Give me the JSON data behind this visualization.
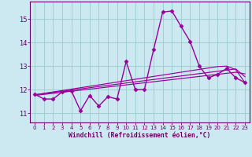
{
  "x": [
    0,
    1,
    2,
    3,
    4,
    5,
    6,
    7,
    8,
    9,
    10,
    11,
    12,
    13,
    14,
    15,
    16,
    17,
    18,
    19,
    20,
    21,
    22,
    23
  ],
  "y_main": [
    11.8,
    11.6,
    11.6,
    11.9,
    11.95,
    11.1,
    11.75,
    11.3,
    11.7,
    11.6,
    13.2,
    12.0,
    12.0,
    13.7,
    15.3,
    15.35,
    14.7,
    14.05,
    13.0,
    12.5,
    12.65,
    12.9,
    12.5,
    12.3
  ],
  "y_line1": [
    11.78,
    11.84,
    11.9,
    11.96,
    12.02,
    12.08,
    12.14,
    12.2,
    12.26,
    12.32,
    12.38,
    12.44,
    12.5,
    12.56,
    12.62,
    12.68,
    12.74,
    12.8,
    12.86,
    12.92,
    12.98,
    13.0,
    12.85,
    12.3
  ],
  "y_line2": [
    11.78,
    11.83,
    11.88,
    11.93,
    11.98,
    12.03,
    12.08,
    12.13,
    12.18,
    12.23,
    12.28,
    12.33,
    12.38,
    12.43,
    12.48,
    12.53,
    12.58,
    12.63,
    12.68,
    12.73,
    12.78,
    12.83,
    12.88,
    12.55
  ],
  "y_line3": [
    11.75,
    11.795,
    11.84,
    11.885,
    11.93,
    11.975,
    12.02,
    12.065,
    12.11,
    12.155,
    12.2,
    12.245,
    12.29,
    12.335,
    12.38,
    12.425,
    12.47,
    12.515,
    12.56,
    12.605,
    12.65,
    12.695,
    12.74,
    12.67
  ],
  "ylim": [
    10.6,
    15.75
  ],
  "xlim": [
    -0.5,
    23.5
  ],
  "yticks": [
    11,
    12,
    13,
    14,
    15
  ],
  "xticks": [
    0,
    1,
    2,
    3,
    4,
    5,
    6,
    7,
    8,
    9,
    10,
    11,
    12,
    13,
    14,
    15,
    16,
    17,
    18,
    19,
    20,
    21,
    22,
    23
  ],
  "line_color": "#990099",
  "bg_color": "#cce8f0",
  "grid_color": "#99cccc",
  "xlabel": "Windchill (Refroidissement éolien,°C)",
  "xlabel_color": "#660066",
  "tick_color": "#660066",
  "marker": "D",
  "marker_size": 2.5,
  "line_width": 1.0
}
